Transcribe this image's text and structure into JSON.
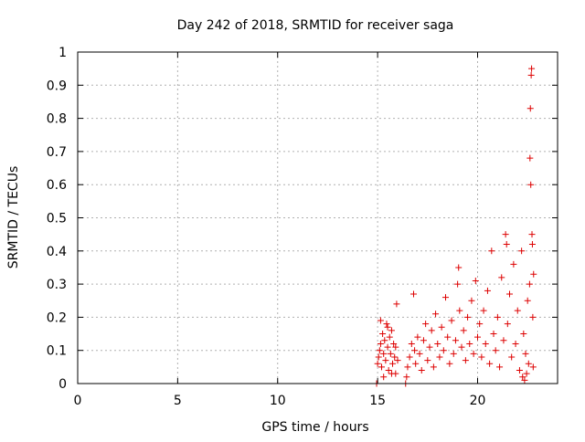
{
  "chart_data": {
    "type": "scatter",
    "title": "Day 242 of 2018, SRMTID for receiver saga",
    "xlabel": "GPS time / hours",
    "ylabel": "SRMTID / TECUs",
    "xlim": [
      0,
      24
    ],
    "ylim": [
      0,
      1
    ],
    "x_ticks": [
      0,
      5,
      10,
      15,
      20
    ],
    "x_tick_labels": [
      "0",
      "5",
      "10",
      "15",
      "20"
    ],
    "y_ticks": [
      0,
      0.1,
      0.2,
      0.3,
      0.4,
      0.5,
      0.6,
      0.7,
      0.8,
      0.9,
      1
    ],
    "y_tick_labels": [
      "0",
      "0.1",
      "0.2",
      "0.3",
      "0.4",
      "0.5",
      "0.6",
      "0.7",
      "0.8",
      "0.9",
      "1"
    ],
    "grid": true,
    "marker": "+",
    "series": [
      {
        "name": "SRMTID",
        "color": "#dd0000",
        "points": [
          [
            14.95,
            0.0
          ],
          [
            15.0,
            0.06
          ],
          [
            15.05,
            0.08
          ],
          [
            15.1,
            0.1
          ],
          [
            15.15,
            0.12
          ],
          [
            15.2,
            0.05
          ],
          [
            15.25,
            0.15
          ],
          [
            15.3,
            0.09
          ],
          [
            15.35,
            0.13
          ],
          [
            15.4,
            0.07
          ],
          [
            15.45,
            0.18
          ],
          [
            15.5,
            0.11
          ],
          [
            15.55,
            0.04
          ],
          [
            15.6,
            0.14
          ],
          [
            15.65,
            0.09
          ],
          [
            15.7,
            0.16
          ],
          [
            15.75,
            0.06
          ],
          [
            15.8,
            0.12
          ],
          [
            15.85,
            0.08
          ],
          [
            15.9,
            0.03
          ],
          [
            15.95,
            0.24
          ],
          [
            15.15,
            0.19
          ],
          [
            15.3,
            0.02
          ],
          [
            15.5,
            0.17
          ],
          [
            15.7,
            0.03
          ],
          [
            15.9,
            0.11
          ],
          [
            16.0,
            0.07
          ],
          [
            16.4,
            0.0
          ],
          [
            16.45,
            0.02
          ],
          [
            16.5,
            0.05
          ],
          [
            16.6,
            0.08
          ],
          [
            16.7,
            0.12
          ],
          [
            16.8,
            0.27
          ],
          [
            16.85,
            0.1
          ],
          [
            16.9,
            0.06
          ],
          [
            17.0,
            0.14
          ],
          [
            17.1,
            0.09
          ],
          [
            17.2,
            0.04
          ],
          [
            17.3,
            0.13
          ],
          [
            17.4,
            0.18
          ],
          [
            17.5,
            0.07
          ],
          [
            17.6,
            0.11
          ],
          [
            17.7,
            0.16
          ],
          [
            17.8,
            0.05
          ],
          [
            17.9,
            0.21
          ],
          [
            18.0,
            0.12
          ],
          [
            18.1,
            0.08
          ],
          [
            18.2,
            0.17
          ],
          [
            18.3,
            0.1
          ],
          [
            18.4,
            0.26
          ],
          [
            18.5,
            0.14
          ],
          [
            18.6,
            0.06
          ],
          [
            18.7,
            0.19
          ],
          [
            18.8,
            0.09
          ],
          [
            18.9,
            0.13
          ],
          [
            19.0,
            0.3
          ],
          [
            19.05,
            0.35
          ],
          [
            19.1,
            0.22
          ],
          [
            19.2,
            0.11
          ],
          [
            19.3,
            0.16
          ],
          [
            19.4,
            0.07
          ],
          [
            19.5,
            0.2
          ],
          [
            19.6,
            0.12
          ],
          [
            19.7,
            0.25
          ],
          [
            19.8,
            0.09
          ],
          [
            19.9,
            0.31
          ],
          [
            20.0,
            0.14
          ],
          [
            20.1,
            0.18
          ],
          [
            20.2,
            0.08
          ],
          [
            20.3,
            0.22
          ],
          [
            20.4,
            0.12
          ],
          [
            20.5,
            0.28
          ],
          [
            20.6,
            0.06
          ],
          [
            20.7,
            0.4
          ],
          [
            20.8,
            0.15
          ],
          [
            20.9,
            0.1
          ],
          [
            21.0,
            0.2
          ],
          [
            21.1,
            0.05
          ],
          [
            21.2,
            0.32
          ],
          [
            21.3,
            0.13
          ],
          [
            21.4,
            0.45
          ],
          [
            21.45,
            0.42
          ],
          [
            21.5,
            0.18
          ],
          [
            21.6,
            0.27
          ],
          [
            21.7,
            0.08
          ],
          [
            21.8,
            0.36
          ],
          [
            21.9,
            0.12
          ],
          [
            22.0,
            0.22
          ],
          [
            22.1,
            0.04
          ],
          [
            22.2,
            0.4
          ],
          [
            22.25,
            0.02
          ],
          [
            22.3,
            0.15
          ],
          [
            22.35,
            0.01
          ],
          [
            22.4,
            0.09
          ],
          [
            22.45,
            0.03
          ],
          [
            22.5,
            0.25
          ],
          [
            22.55,
            0.06
          ],
          [
            22.6,
            0.3
          ],
          [
            22.62,
            0.68
          ],
          [
            22.64,
            0.83
          ],
          [
            22.66,
            0.6
          ],
          [
            22.68,
            0.93
          ],
          [
            22.7,
            0.95
          ],
          [
            22.72,
            0.45
          ],
          [
            22.74,
            0.42
          ],
          [
            22.76,
            0.2
          ],
          [
            22.78,
            0.05
          ],
          [
            22.8,
            0.33
          ]
        ]
      }
    ]
  }
}
